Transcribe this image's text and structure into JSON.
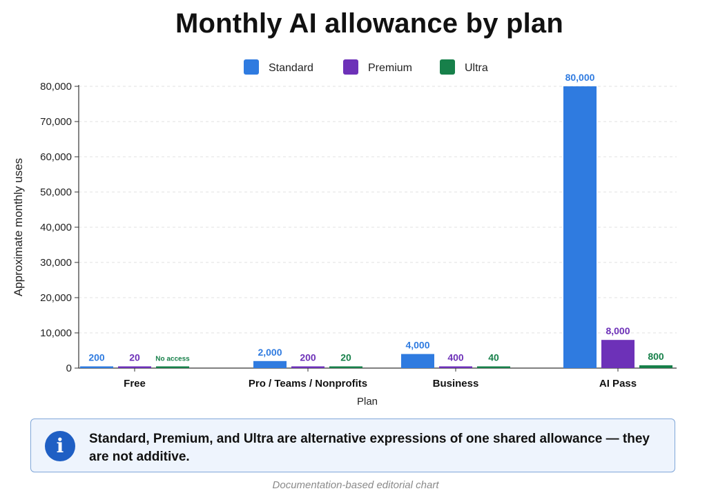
{
  "note": {
    "text": "Standard, Premium, and Ultra are alternative expressions of one shared allowance — they are not additive."
  },
  "footer": {
    "source": "Documentation-based editorial chart"
  },
  "icons": {
    "info": "info-icon"
  },
  "chart_data": {
    "type": "bar",
    "title": "Monthly AI allowance by plan",
    "xlabel": "Plan",
    "ylabel": "Approximate monthly uses",
    "categories": [
      "Free",
      "Pro / Teams / Nonprofits",
      "Business",
      "AI Pass"
    ],
    "ylim": [
      0,
      80000
    ],
    "yticks": [
      0,
      10000,
      20000,
      30000,
      40000,
      50000,
      60000,
      70000,
      80000
    ],
    "ytick_labels": [
      "0",
      "10,000",
      "20,000",
      "30,000",
      "40,000",
      "50,000",
      "60,000",
      "70,000",
      "80,000"
    ],
    "grid": true,
    "legend_position": "top-center",
    "series": [
      {
        "name": "Standard",
        "color": "#2f7be0",
        "values": [
          200,
          2000,
          4000,
          80000
        ],
        "labels": [
          "200",
          "2,000",
          "4,000",
          "80,000"
        ]
      },
      {
        "name": "Premium",
        "color": "#6d31b8",
        "values": [
          20,
          200,
          400,
          8000
        ],
        "labels": [
          "20",
          "200",
          "400",
          "8,000"
        ]
      },
      {
        "name": "Ultra",
        "color": "#17804a",
        "values": [
          0,
          20,
          40,
          800
        ],
        "labels": [
          "No access",
          "20",
          "40",
          "800"
        ]
      }
    ]
  }
}
